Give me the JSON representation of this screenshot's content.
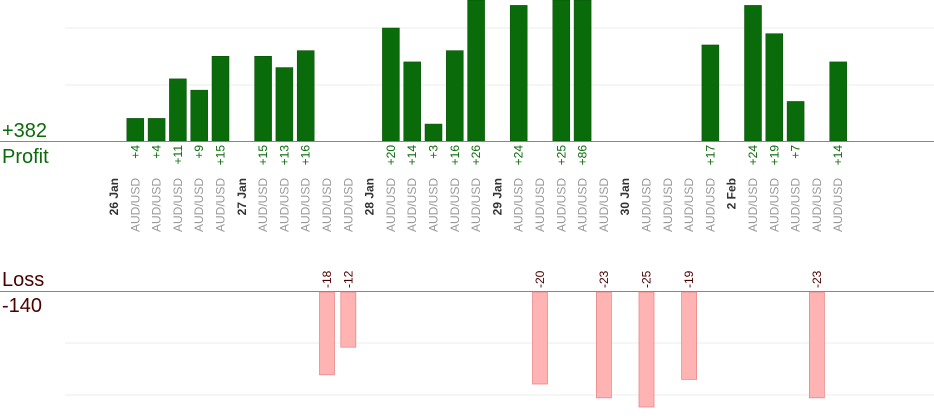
{
  "chart_data": {
    "type": "bar",
    "title": "",
    "profit": {
      "total_label": "+382",
      "label": "Profit"
    },
    "loss": {
      "total_label": "-140",
      "label": "Loss"
    },
    "colors": {
      "profit_bar": "#0a6b0a",
      "profit_text": "#0a6b0a",
      "loss_bar": "#ffb3b3",
      "loss_text": "#4a0000",
      "category_text": "#999999",
      "date_text": "#333333",
      "grid": "#eeeeee",
      "axis": "#888888"
    },
    "ylim_profit": [
      0,
      25
    ],
    "ylim_loss": [
      -25,
      0
    ],
    "items": [
      {
        "type": "date",
        "label": "26 Jan"
      },
      {
        "type": "trade",
        "category": "AUD/USD",
        "value": 4,
        "label": "+4"
      },
      {
        "type": "trade",
        "category": "AUD/USD",
        "value": 4,
        "label": "+4"
      },
      {
        "type": "trade",
        "category": "AUD/USD",
        "value": 11,
        "label": "+11"
      },
      {
        "type": "trade",
        "category": "AUD/USD",
        "value": 9,
        "label": "+9"
      },
      {
        "type": "trade",
        "category": "AUD/USD",
        "value": 15,
        "label": "+15"
      },
      {
        "type": "date",
        "label": "27 Jan"
      },
      {
        "type": "trade",
        "category": "AUD/USD",
        "value": 15,
        "label": "+15"
      },
      {
        "type": "trade",
        "category": "AUD/USD",
        "value": 13,
        "label": "+13"
      },
      {
        "type": "trade",
        "category": "AUD/USD",
        "value": 16,
        "label": "+16"
      },
      {
        "type": "trade",
        "category": "AUD/USD",
        "value": -18,
        "label": "-18"
      },
      {
        "type": "trade",
        "category": "AUD/USD",
        "value": -12,
        "label": "-12"
      },
      {
        "type": "date",
        "label": "28 Jan"
      },
      {
        "type": "trade",
        "category": "AUD/USD",
        "value": 20,
        "label": "+20"
      },
      {
        "type": "trade",
        "category": "AUD/USD",
        "value": 14,
        "label": "+14"
      },
      {
        "type": "trade",
        "category": "AUD/USD",
        "value": 3,
        "label": "+3"
      },
      {
        "type": "trade",
        "category": "AUD/USD",
        "value": 16,
        "label": "+16"
      },
      {
        "type": "trade",
        "category": "AUD/USD",
        "value": 26,
        "label": "+26"
      },
      {
        "type": "date",
        "label": "29 Jan"
      },
      {
        "type": "trade",
        "category": "AUD/USD",
        "value": 24,
        "label": "+24"
      },
      {
        "type": "trade",
        "category": "AUD/USD",
        "value": -20,
        "label": "-20"
      },
      {
        "type": "trade",
        "category": "AUD/USD",
        "value": 25,
        "label": "+25"
      },
      {
        "type": "trade",
        "category": "AUD/USD",
        "value": 86,
        "label": "+86"
      },
      {
        "type": "trade",
        "category": "AUD/USD",
        "value": -23,
        "label": "-23"
      },
      {
        "type": "date",
        "label": "30 Jan"
      },
      {
        "type": "trade",
        "category": "AUD/USD",
        "value": -25,
        "label": "-25"
      },
      {
        "type": "trade",
        "category": "AUD/USD",
        "value": null,
        "label": ""
      },
      {
        "type": "trade",
        "category": "AUD/USD",
        "value": -19,
        "label": "-19"
      },
      {
        "type": "trade",
        "category": "AUD/USD",
        "value": 17,
        "label": "+17"
      },
      {
        "type": "date",
        "label": "2 Feb"
      },
      {
        "type": "trade",
        "category": "AUD/USD",
        "value": 24,
        "label": "+24"
      },
      {
        "type": "trade",
        "category": "AUD/USD",
        "value": 19,
        "label": "+19"
      },
      {
        "type": "trade",
        "category": "AUD/USD",
        "value": 7,
        "label": "+7"
      },
      {
        "type": "trade",
        "category": "AUD/USD",
        "value": -23,
        "label": "-23"
      },
      {
        "type": "trade",
        "category": "AUD/USD",
        "value": 14,
        "label": "+14"
      }
    ]
  }
}
